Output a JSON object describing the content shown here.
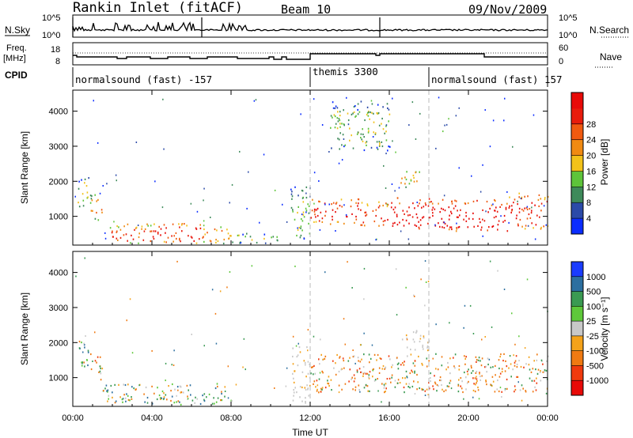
{
  "header": {
    "station": "Rankin Inlet (fitACF)",
    "beam": "Beam 10",
    "date": "09/Nov/2009"
  },
  "top_panels": {
    "nsky_label": "N.Sky",
    "nsky_ticks": [
      "10^5",
      "10^0"
    ],
    "nsearch_label": "N.Search",
    "nsearch_ticks": [
      "10^5",
      "10^0"
    ],
    "freq_label_1": "Freq.",
    "freq_label_2": "[MHz]",
    "freq_ticks": [
      "18",
      "8"
    ],
    "nave_label": "Nave",
    "nave_ticks": [
      "60",
      "0"
    ],
    "cpid_label": "CPID",
    "cpid_segments": [
      {
        "label": "normalsound (fast) -157",
        "start_hour": 0,
        "end_hour": 12
      },
      {
        "label": "themis 3300",
        "start_hour": 12,
        "end_hour": 18
      },
      {
        "label": "normalsound (fast) 157",
        "start_hour": 18,
        "end_hour": 24
      }
    ]
  },
  "chart_data": [
    {
      "type": "heatmap",
      "title": "",
      "xlabel": "Time UT",
      "ylabel": "Slant Range [km]",
      "xlim": [
        0,
        24
      ],
      "ylim": [
        180,
        4600
      ],
      "x_ticks": [
        "00:00",
        "04:00",
        "08:00",
        "12:00",
        "16:00",
        "20:00",
        "00:00"
      ],
      "y_ticks": [
        1000,
        2000,
        3000,
        4000
      ],
      "colorbar": {
        "label": "Power [dB]",
        "ticks": [
          "4",
          "8",
          "12",
          "16",
          "20",
          "24",
          "28"
        ],
        "colors": [
          "#0a2cff",
          "#2b4aa8",
          "#3e8a5a",
          "#5ec43a",
          "#f2c21a",
          "#f08a12",
          "#f05a10",
          "#e81c0c",
          "#e80a08"
        ]
      },
      "echo_regions": [
        {
          "t0": 0.2,
          "t1": 0.9,
          "r0": 1300,
          "r1": 2150,
          "level": 3
        },
        {
          "t0": 0.9,
          "t1": 1.5,
          "r0": 900,
          "r1": 1650,
          "level": 5
        },
        {
          "t0": 1.5,
          "t1": 4.0,
          "r0": 250,
          "r1": 800,
          "level": 6
        },
        {
          "t0": 4.0,
          "t1": 6.5,
          "r0": 250,
          "r1": 850,
          "level": 7
        },
        {
          "t0": 6.5,
          "t1": 8.0,
          "r0": 250,
          "r1": 800,
          "level": 5
        },
        {
          "t0": 8.0,
          "t1": 10.5,
          "r0": 250,
          "r1": 550,
          "level": 3
        },
        {
          "t0": 11.0,
          "t1": 12.0,
          "r0": 300,
          "r1": 1900,
          "level": 3
        },
        {
          "t0": 12.0,
          "t1": 14.5,
          "r0": 800,
          "r1": 1550,
          "level": 7
        },
        {
          "t0": 14.5,
          "t1": 16.0,
          "r0": 750,
          "r1": 1450,
          "level": 7
        },
        {
          "t0": 16.0,
          "t1": 18.0,
          "r0": 650,
          "r1": 1550,
          "level": 8
        },
        {
          "t0": 16.5,
          "t1": 17.5,
          "r0": 1800,
          "r1": 2400,
          "level": 4
        },
        {
          "t0": 18.0,
          "t1": 22.0,
          "r0": 600,
          "r1": 1500,
          "level": 8
        },
        {
          "t0": 22.0,
          "t1": 24.0,
          "r0": 650,
          "r1": 1700,
          "level": 7
        },
        {
          "t0": 13.0,
          "t1": 16.0,
          "r0": 2900,
          "r1": 4300,
          "level": 3
        }
      ]
    },
    {
      "type": "heatmap",
      "title": "",
      "xlabel": "Time UT",
      "ylabel": "Slant Range [km]",
      "xlim": [
        0,
        24
      ],
      "ylim": [
        180,
        4600
      ],
      "x_ticks": [
        "00:00",
        "04:00",
        "08:00",
        "12:00",
        "16:00",
        "20:00",
        "00:00"
      ],
      "y_ticks": [
        1000,
        2000,
        3000,
        4000
      ],
      "colorbar": {
        "label": "Velocity [m s⁻¹]",
        "ticks": [
          "1000",
          "500",
          "100",
          "25",
          "-25",
          "-100",
          "-500",
          "-1000"
        ],
        "colors": [
          "#1a3cff",
          "#2c6fa0",
          "#3a9a52",
          "#5ec83a",
          "#c8c8c8",
          "#f4a21a",
          "#f07a12",
          "#f03a0e",
          "#e80a08"
        ]
      },
      "echo_regions": [
        {
          "t0": 0.2,
          "t1": 0.9,
          "r0": 1300,
          "r1": 2150,
          "class": "toward"
        },
        {
          "t0": 0.9,
          "t1": 1.5,
          "r0": 900,
          "r1": 1650,
          "class": "away"
        },
        {
          "t0": 1.5,
          "t1": 8.0,
          "r0": 250,
          "r1": 850,
          "class": "mixed"
        },
        {
          "t0": 11.0,
          "t1": 12.0,
          "r0": 300,
          "r1": 1900,
          "class": "ground"
        },
        {
          "t0": 12.0,
          "t1": 24.0,
          "r0": 600,
          "r1": 1700,
          "class": "away"
        },
        {
          "t0": 16.5,
          "t1": 18.0,
          "r0": 1800,
          "r1": 2400,
          "class": "ground"
        }
      ]
    }
  ]
}
